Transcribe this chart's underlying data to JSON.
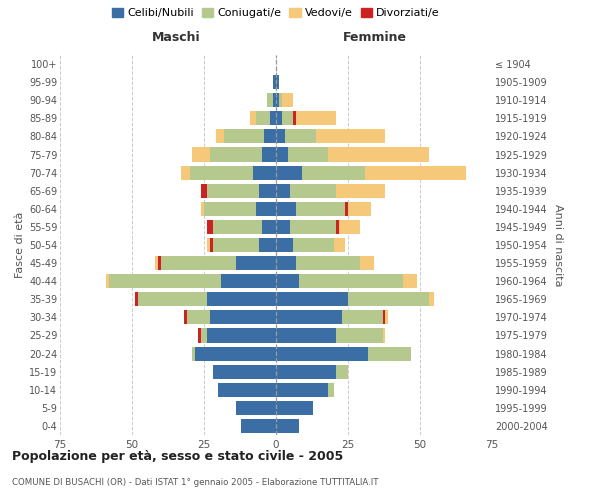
{
  "age_groups": [
    "0-4",
    "5-9",
    "10-14",
    "15-19",
    "20-24",
    "25-29",
    "30-34",
    "35-39",
    "40-44",
    "45-49",
    "50-54",
    "55-59",
    "60-64",
    "65-69",
    "70-74",
    "75-79",
    "80-84",
    "85-89",
    "90-94",
    "95-99",
    "100+"
  ],
  "birth_years": [
    "2000-2004",
    "1995-1999",
    "1990-1994",
    "1985-1989",
    "1980-1984",
    "1975-1979",
    "1970-1974",
    "1965-1969",
    "1960-1964",
    "1955-1959",
    "1950-1954",
    "1945-1949",
    "1940-1944",
    "1935-1939",
    "1930-1934",
    "1925-1929",
    "1920-1924",
    "1915-1919",
    "1910-1914",
    "1905-1909",
    "≤ 1904"
  ],
  "males": {
    "celibi": [
      12,
      14,
      20,
      22,
      28,
      24,
      23,
      24,
      19,
      14,
      6,
      5,
      7,
      6,
      8,
      5,
      4,
      2,
      1,
      1,
      0
    ],
    "coniugati": [
      0,
      0,
      0,
      0,
      1,
      2,
      8,
      24,
      39,
      26,
      16,
      17,
      18,
      18,
      22,
      18,
      14,
      5,
      2,
      0,
      0
    ],
    "vedovi": [
      0,
      0,
      0,
      0,
      0,
      0,
      0,
      0,
      1,
      1,
      1,
      0,
      1,
      0,
      3,
      6,
      3,
      2,
      0,
      0,
      0
    ],
    "divorziati": [
      0,
      0,
      0,
      0,
      0,
      1,
      1,
      1,
      0,
      1,
      1,
      2,
      0,
      2,
      0,
      0,
      0,
      0,
      0,
      0,
      0
    ]
  },
  "females": {
    "nubili": [
      8,
      13,
      18,
      21,
      32,
      21,
      23,
      25,
      8,
      7,
      6,
      5,
      7,
      5,
      9,
      4,
      3,
      2,
      1,
      1,
      0
    ],
    "coniugate": [
      0,
      0,
      2,
      4,
      15,
      16,
      14,
      28,
      36,
      22,
      14,
      16,
      17,
      16,
      22,
      14,
      11,
      4,
      1,
      0,
      0
    ],
    "vedove": [
      0,
      0,
      0,
      0,
      0,
      1,
      1,
      2,
      5,
      5,
      4,
      7,
      8,
      17,
      35,
      35,
      24,
      14,
      4,
      0,
      0
    ],
    "divorziate": [
      0,
      0,
      0,
      0,
      0,
      0,
      1,
      0,
      0,
      0,
      0,
      1,
      1,
      0,
      0,
      0,
      0,
      1,
      0,
      0,
      0
    ]
  },
  "colors": {
    "celibi_nubili": "#3a6ea5",
    "coniugati": "#b5c98e",
    "vedovi": "#f5c87a",
    "divorziati": "#cc2222"
  },
  "xlim": 75,
  "title": "Popolazione per età, sesso e stato civile - 2005",
  "subtitle": "COMUNE DI BUSACHI (OR) - Dati ISTAT 1° gennaio 2005 - Elaborazione TUTTITALIA.IT",
  "ylabel_left": "Fasce di età",
  "ylabel_right": "Anni di nascita",
  "xlabel_left": "Maschi",
  "xlabel_right": "Femmine",
  "background_color": "#ffffff",
  "grid_color": "#cccccc"
}
